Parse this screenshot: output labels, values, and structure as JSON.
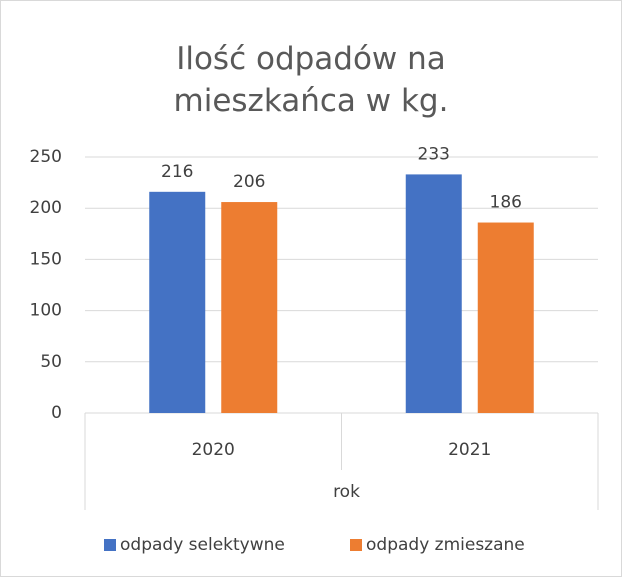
{
  "chart_data": {
    "type": "bar",
    "title": "Ilość odpadów na mieszkańca w kg.",
    "x_label": "rok",
    "categories": [
      "2020",
      "2021"
    ],
    "series": [
      {
        "name": "odpady selektywne",
        "color": "#4472c4",
        "values": [
          216,
          233
        ]
      },
      {
        "name": "odpady zmieszane",
        "color": "#ed7d31",
        "values": [
          206,
          186
        ]
      }
    ],
    "ylim": [
      0,
      250
    ],
    "yticks": [
      0,
      50,
      100,
      150,
      200,
      250
    ],
    "grid": true,
    "legend": "bottom"
  }
}
